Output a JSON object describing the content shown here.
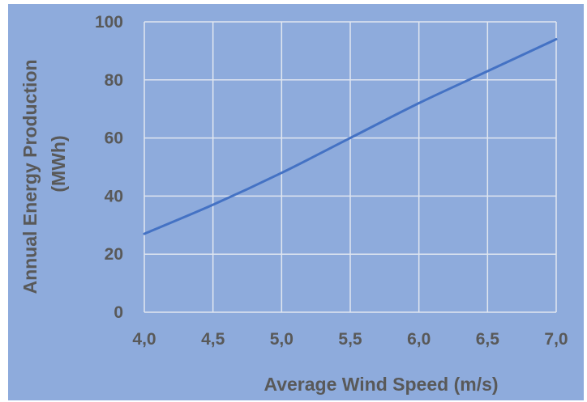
{
  "chart_data": {
    "type": "line",
    "title": "",
    "xlabel": "Average Wind Speed (m/s)",
    "ylabel_line1": "Annual Energy Production",
    "ylabel_line2": "(MWh)",
    "xlim": [
      4.0,
      7.0
    ],
    "ylim": [
      0,
      100
    ],
    "x_ticks": [
      4.0,
      4.5,
      5.0,
      5.5,
      6.0,
      6.5,
      7.0
    ],
    "x_tick_labels": [
      "4,0",
      "4,5",
      "5,0",
      "5,5",
      "6,0",
      "6,5",
      "7,0"
    ],
    "y_ticks": [
      0,
      20,
      40,
      60,
      80,
      100
    ],
    "y_tick_labels": [
      "0",
      "20",
      "40",
      "60",
      "80",
      "100"
    ],
    "grid": true,
    "legend": "none",
    "series": [
      {
        "x": [
          4.0,
          4.5,
          5.0,
          5.5,
          6.0,
          6.5,
          7.0
        ],
        "values": [
          27,
          37,
          48,
          60,
          72,
          83,
          94
        ],
        "color": "#4472C4"
      }
    ],
    "colors": {
      "background": "#8EABDC",
      "grid": "#E0E6F0",
      "axis_text": "#595959"
    }
  }
}
